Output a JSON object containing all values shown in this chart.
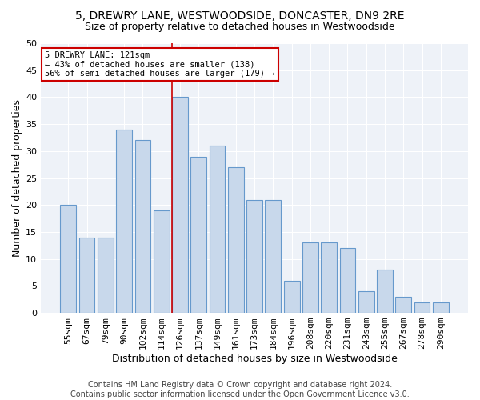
{
  "title1": "5, DREWRY LANE, WESTWOODSIDE, DONCASTER, DN9 2RE",
  "title2": "Size of property relative to detached houses in Westwoodside",
  "xlabel": "Distribution of detached houses by size in Westwoodside",
  "ylabel": "Number of detached properties",
  "categories": [
    "55sqm",
    "67sqm",
    "79sqm",
    "90sqm",
    "102sqm",
    "114sqm",
    "126sqm",
    "137sqm",
    "149sqm",
    "161sqm",
    "173sqm",
    "184sqm",
    "196sqm",
    "208sqm",
    "220sqm",
    "231sqm",
    "243sqm",
    "255sqm",
    "267sqm",
    "278sqm",
    "290sqm"
  ],
  "values": [
    20,
    14,
    14,
    34,
    32,
    19,
    40,
    29,
    31,
    27,
    21,
    21,
    6,
    13,
    13,
    12,
    4,
    8,
    3,
    2,
    2
  ],
  "bar_color": "#c8d8eb",
  "bar_edgecolor": "#6699cc",
  "vline_color": "#cc0000",
  "vline_idx": 6,
  "annotation_text": "5 DREWRY LANE: 121sqm\n← 43% of detached houses are smaller (138)\n56% of semi-detached houses are larger (179) →",
  "annotation_box_color": "#ffffff",
  "annotation_box_edgecolor": "#cc0000",
  "ylim": [
    0,
    50
  ],
  "yticks": [
    0,
    5,
    10,
    15,
    20,
    25,
    30,
    35,
    40,
    45,
    50
  ],
  "footer_line1": "Contains HM Land Registry data © Crown copyright and database right 2024.",
  "footer_line2": "Contains public sector information licensed under the Open Government Licence v3.0.",
  "bg_color": "#ffffff",
  "plot_bg_color": "#eef2f8",
  "title1_fontsize": 10,
  "title2_fontsize": 9,
  "xlabel_fontsize": 9,
  "ylabel_fontsize": 9,
  "tick_fontsize": 8,
  "footer_fontsize": 7
}
